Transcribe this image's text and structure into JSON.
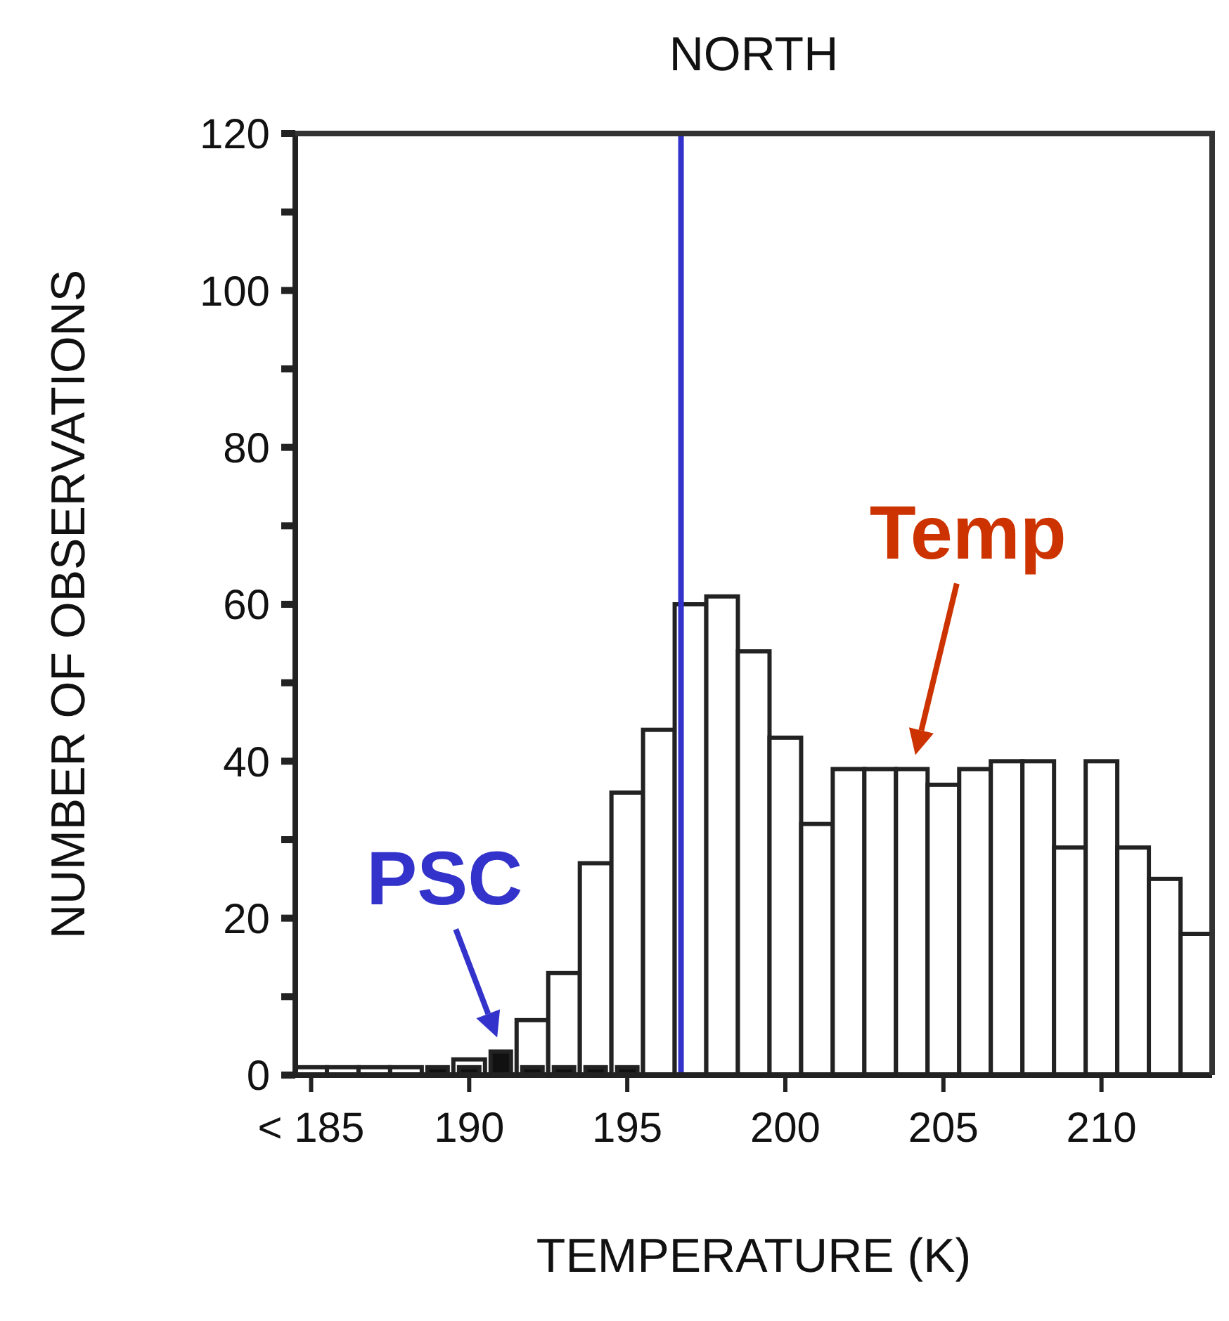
{
  "chart_data": {
    "type": "histogram",
    "title": "NORTH",
    "xlabel": "TEMPERATURE (K)",
    "ylabel": "NUMBER OF OBSERVATIONS",
    "bins": [
      184.5,
      185.5,
      186.5,
      187.5,
      188.5,
      189.5,
      190.5,
      191.5,
      192.5,
      193.5,
      194.5,
      195.5,
      196.5,
      197.5,
      198.5,
      199.5,
      200.5,
      201.5,
      202.5,
      203.5,
      204.5,
      205.5,
      206.5,
      207.5,
      208.5,
      209.5,
      210.5,
      211.5,
      212.5,
      213.5
    ],
    "series": [
      {
        "color": "#ffffff",
        "values": [
          1,
          1,
          1,
          1,
          null,
          2,
          null,
          7,
          13,
          27,
          36,
          44,
          60,
          61,
          54,
          43,
          32,
          39,
          39,
          39,
          37,
          39,
          40,
          40,
          29,
          40,
          29,
          25,
          18
        ]
      },
      {
        "color": "#111111",
        "values": [
          0,
          0,
          0,
          0,
          1,
          1,
          3,
          1,
          1,
          1,
          1,
          0,
          0,
          0,
          0,
          0,
          0,
          0,
          0,
          0,
          0,
          0,
          0,
          0,
          0,
          0,
          0,
          0,
          0
        ]
      }
    ],
    "xlim": [
      184.5,
      213.5
    ],
    "xticks": [
      {
        "value": 185,
        "label": "< 185"
      },
      190,
      195,
      200,
      205,
      210
    ],
    "ylim": [
      0,
      120
    ],
    "yticks": [
      0,
      {
        "value": 10,
        "label": null
      },
      20,
      {
        "value": 30,
        "label": null
      },
      40,
      {
        "value": 50,
        "label": null
      },
      60,
      {
        "value": 70,
        "label": null
      },
      80,
      {
        "value": 90,
        "label": null
      },
      100,
      {
        "value": 110,
        "label": null
      },
      120
    ],
    "ref_lines": [
      {
        "axis": "x",
        "value": 196.7,
        "color": "#3333cc"
      }
    ],
    "annotations": [
      {
        "text": "PSC",
        "x": 191,
        "y": 3
      },
      {
        "text": "Temp",
        "x": 204,
        "y": 39
      }
    ]
  }
}
